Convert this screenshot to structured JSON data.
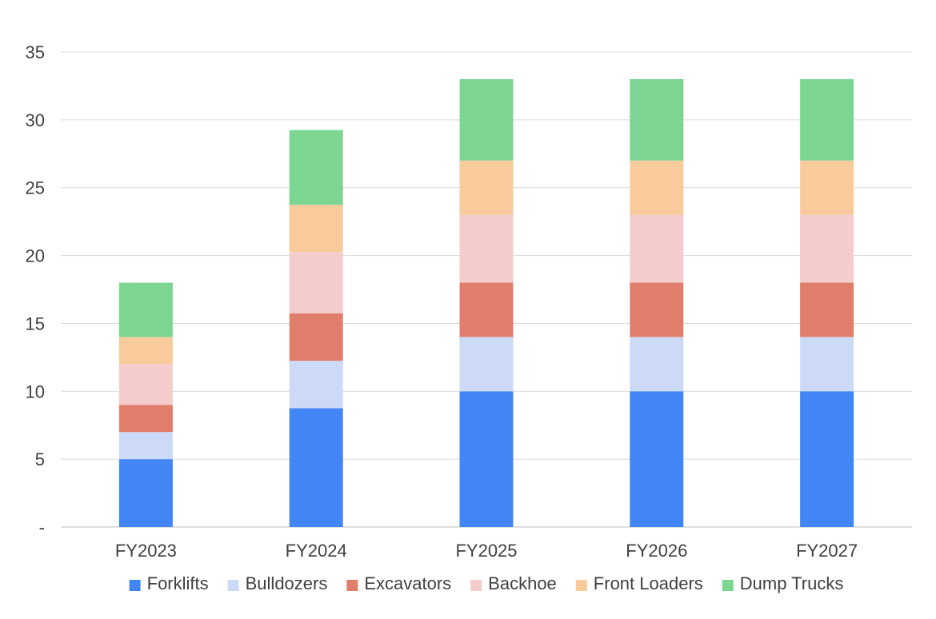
{
  "chart_data": {
    "type": "bar",
    "stacked": true,
    "title": "",
    "xlabel": "",
    "ylabel": "",
    "categories": [
      "FY2023",
      "FY2024",
      "FY2025",
      "FY2026",
      "FY2027"
    ],
    "ylim": [
      0,
      35
    ],
    "yticks": [
      0,
      5,
      10,
      15,
      20,
      25,
      30,
      35
    ],
    "ytick_labels": [
      "-",
      "5",
      "10",
      "15",
      "20",
      "25",
      "30",
      "35"
    ],
    "grid": true,
    "legend_position": "bottom",
    "series": [
      {
        "name": "Forklifts",
        "color": "#4285F4",
        "values": [
          5,
          8.75,
          10,
          10,
          10
        ]
      },
      {
        "name": "Bulldozers",
        "color": "#CCDAF8",
        "values": [
          2,
          3.5,
          4,
          4,
          4
        ]
      },
      {
        "name": "Excavators",
        "color": "#E07E6B",
        "values": [
          2,
          3.5,
          4,
          4,
          4
        ]
      },
      {
        "name": "Backhoe",
        "color": "#F4CCCC",
        "values": [
          3,
          4.5,
          5,
          5,
          5
        ]
      },
      {
        "name": "Front Loaders",
        "color": "#F9CB9C",
        "values": [
          2,
          3.5,
          4,
          4,
          4
        ]
      },
      {
        "name": "Dump Trucks",
        "color": "#7CD692",
        "values": [
          4,
          5.5,
          6,
          6,
          6
        ]
      }
    ]
  }
}
